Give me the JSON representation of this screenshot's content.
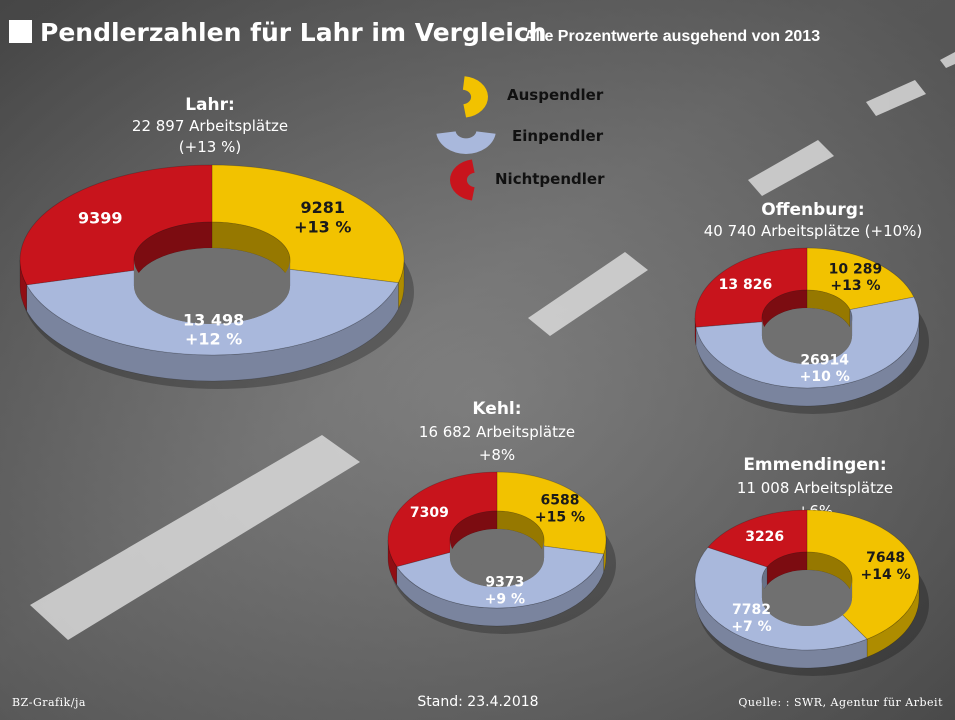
{
  "title": "Pendlerzahlen für Lahr im Vergleich",
  "subtitle": "Alle Prozentwerte ausgehend von 2013",
  "legend": [
    {
      "key": "aus",
      "label": "Auspendler",
      "color": "#f2c200"
    },
    {
      "key": "ein",
      "label": "Einpendler",
      "color": "#a9b8dc"
    },
    {
      "key": "nicht",
      "label": "Nichtpendler",
      "color": "#c8141c"
    }
  ],
  "footer": {
    "credit": "BZ-Grafik/ja",
    "stand": "Stand: 23.4.2018",
    "source": "Quelle: : SWR, Agentur für Arbeit"
  },
  "chart_data": [
    {
      "type": "pie",
      "city": "Lahr:",
      "jobs_line": "22 897 Arbeitsplätze",
      "change_line": "(+13 %)",
      "slices": [
        {
          "category": "Auspendler",
          "value": 9281,
          "label": "9281",
          "change": "+13 %"
        },
        {
          "category": "Einpendler",
          "value": 13498,
          "label": "13 498",
          "change": "+12 %"
        },
        {
          "category": "Nichtpendler",
          "value": 9399,
          "label": "9399",
          "change": ""
        }
      ]
    },
    {
      "type": "pie",
      "city": "Offenburg:",
      "jobs_line": "40 740 Arbeitsplätze (+10%)",
      "change_line": "",
      "slices": [
        {
          "category": "Auspendler",
          "value": 10289,
          "label": "10 289",
          "change": "+13 %"
        },
        {
          "category": "Einpendler",
          "value": 26914,
          "label": "26914",
          "change": "+10 %"
        },
        {
          "category": "Nichtpendler",
          "value": 13826,
          "label": "13 826",
          "change": ""
        }
      ]
    },
    {
      "type": "pie",
      "city": "Kehl:",
      "jobs_line": "16 682 Arbeitsplätze",
      "change_line": "+8%",
      "slices": [
        {
          "category": "Auspendler",
          "value": 6588,
          "label": "6588",
          "change": "+15 %"
        },
        {
          "category": "Einpendler",
          "value": 9373,
          "label": "9373",
          "change": "+9 %"
        },
        {
          "category": "Nichtpendler",
          "value": 7309,
          "label": "7309",
          "change": ""
        }
      ]
    },
    {
      "type": "pie",
      "city": "Emmendingen:",
      "jobs_line": "11 008 Arbeitsplätze",
      "change_line": "+6%",
      "slices": [
        {
          "category": "Auspendler",
          "value": 7648,
          "label": "7648",
          "change": "+14 %"
        },
        {
          "category": "Einpendler",
          "value": 7782,
          "label": "7782",
          "change": "+7 %"
        },
        {
          "category": "Nichtpendler",
          "value": 3226,
          "label": "3226",
          "change": ""
        }
      ]
    }
  ]
}
